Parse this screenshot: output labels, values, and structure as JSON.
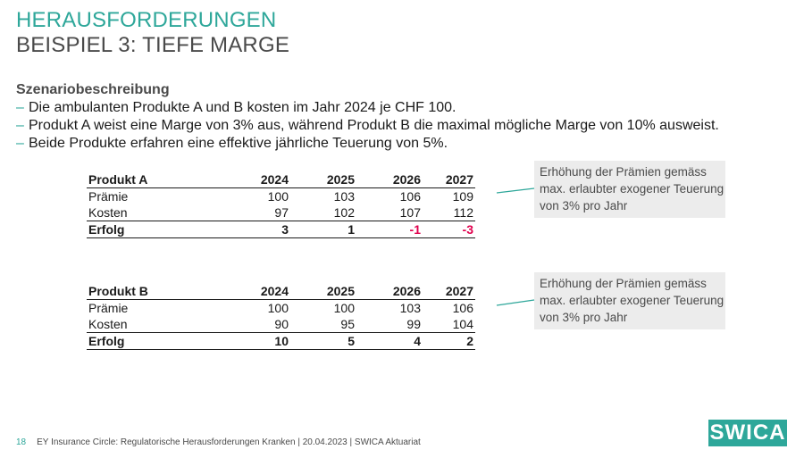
{
  "header": {
    "title_line1": "HERAUSFORDERUNGEN",
    "title_line2": "BEISPIEL 3: TIEFE MARGE"
  },
  "scenario": {
    "heading": "Szenariobeschreibung",
    "bullet_marker": "–",
    "bullets": [
      "Die ambulanten Produkte A und B kosten im Jahr 2024 je CHF 100.",
      "Produkt A weist eine Marge von 3% aus, während Produkt B die maximal mögliche Marge von 10% ausweist.",
      "Beide Produkte erfahren eine effektive jährliche Teuerung von 5%."
    ]
  },
  "table_a": {
    "product": "Produkt A",
    "years": [
      "2024",
      "2025",
      "2026",
      "2027"
    ],
    "rows": [
      {
        "label": "Prämie",
        "values": [
          "100",
          "103",
          "106",
          "109"
        ]
      },
      {
        "label": "Kosten",
        "values": [
          "97",
          "102",
          "107",
          "112"
        ]
      }
    ],
    "result": {
      "label": "Erfolg",
      "values": [
        "3",
        "1",
        "-1",
        "-3"
      ]
    }
  },
  "table_b": {
    "product": "Produkt B",
    "years": [
      "2024",
      "2025",
      "2026",
      "2027"
    ],
    "rows": [
      {
        "label": "Prämie",
        "values": [
          "100",
          "100",
          "103",
          "106"
        ]
      },
      {
        "label": "Kosten",
        "values": [
          "90",
          "95",
          "99",
          "104"
        ]
      }
    ],
    "result": {
      "label": "Erfolg",
      "values": [
        "10",
        "5",
        "4",
        "2"
      ]
    }
  },
  "notes": {
    "a": "Erhöhung der Prämien gemäss max. erlaubter exogener Teuerung von 3% pro Jahr",
    "b": "Erhöhung der Prämien gemäss max. erlaubter exogener Teuerung von 3% pro Jahr"
  },
  "colors": {
    "accent": "#2ea79a",
    "negative": "#e0004d"
  },
  "footer": {
    "page_number": "18",
    "text": "EY Insurance Circle: Regulatorische Herausforderungen Kranken | 20.04.2023 | SWICA Aktuariat"
  },
  "logo": {
    "text": "SWICA"
  }
}
